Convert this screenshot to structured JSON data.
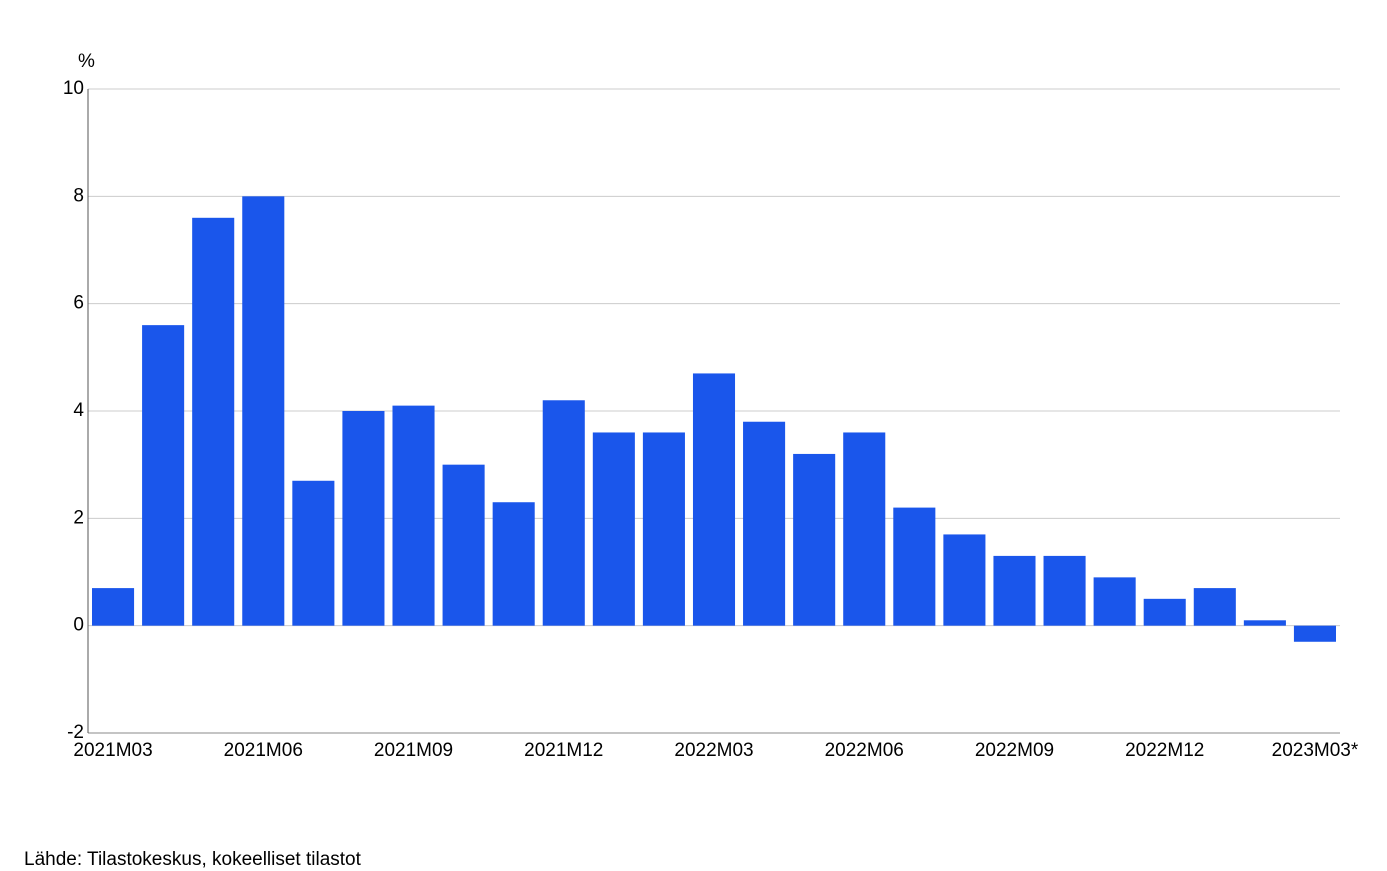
{
  "chart_data": {
    "type": "bar",
    "y_unit": "%",
    "source": "Lähde: Tilastokeskus, kokeelliset tilastot",
    "categories": [
      "2021M03",
      null,
      null,
      "2021M06",
      null,
      null,
      "2021M09",
      null,
      null,
      "2021M12",
      null,
      null,
      "2022M03",
      null,
      null,
      "2022M06",
      null,
      null,
      "2022M09",
      null,
      null,
      "2022M12",
      null,
      null,
      "2023M03*"
    ],
    "values": [
      0.7,
      5.6,
      7.6,
      8.0,
      2.7,
      4.0,
      4.1,
      3.0,
      2.3,
      4.2,
      3.6,
      3.6,
      4.7,
      3.8,
      3.2,
      3.6,
      2.2,
      1.7,
      1.3,
      1.3,
      0.9,
      0.5,
      0.7,
      0.1,
      -0.3
    ],
    "color": "#1a56eb",
    "ylim": [
      -2,
      10
    ],
    "yticks": [
      -2,
      0,
      2,
      4,
      6,
      8,
      10
    ],
    "grid": true
  }
}
